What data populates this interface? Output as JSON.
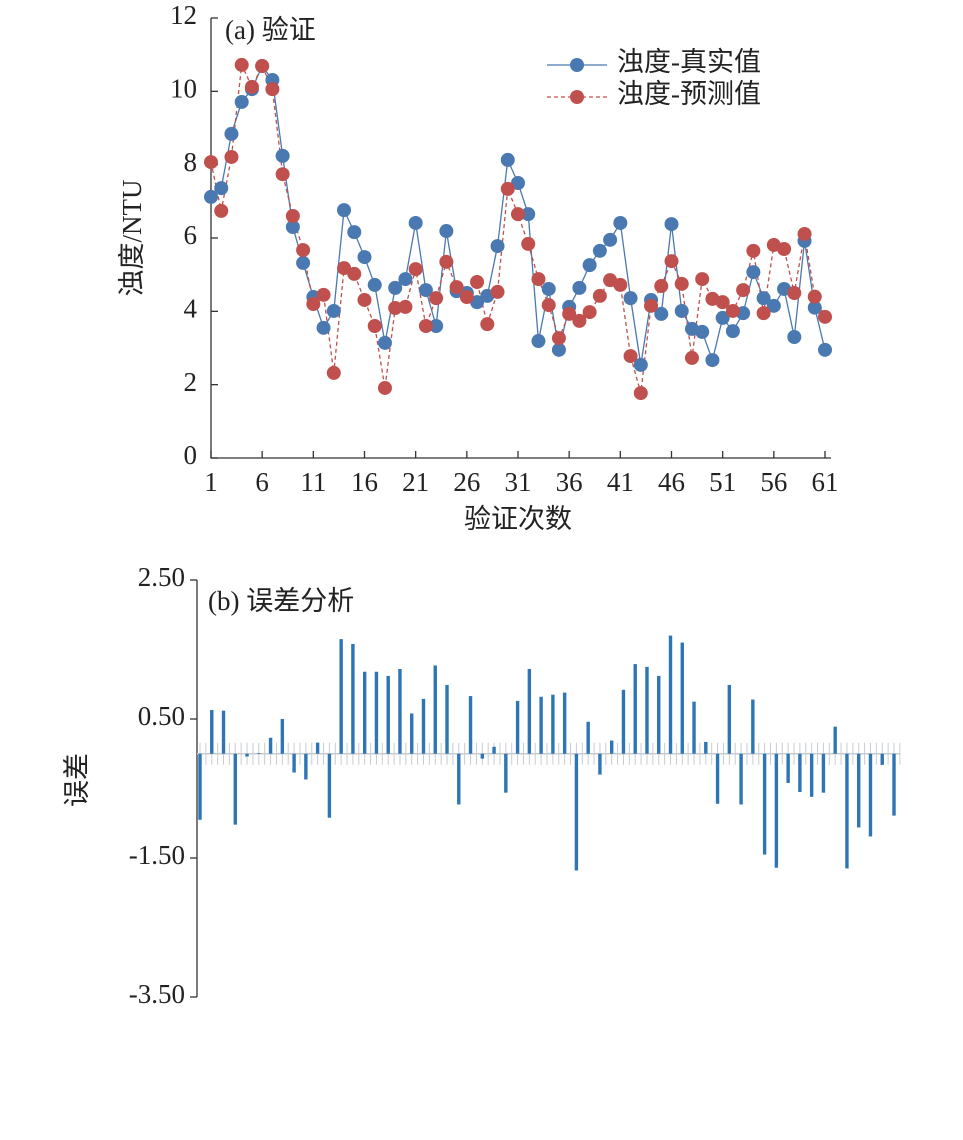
{
  "chart_data": [
    {
      "type": "line",
      "title": "(a)  验证",
      "xlabel": "验证次数",
      "ylabel": "浊度/NTU",
      "x": [
        1,
        2,
        3,
        4,
        5,
        6,
        7,
        8,
        9,
        10,
        11,
        12,
        13,
        14,
        15,
        16,
        17,
        18,
        19,
        20,
        21,
        22,
        23,
        24,
        25,
        26,
        27,
        28,
        29,
        30,
        31,
        32,
        33,
        34,
        35,
        36,
        37,
        38,
        39,
        40,
        41,
        42,
        43,
        44,
        45,
        46,
        47,
        48,
        49,
        50,
        51,
        52,
        53,
        54,
        55,
        56,
        57,
        58,
        59,
        60,
        61
      ],
      "xlim": [
        1,
        61
      ],
      "xticks": [
        1,
        6,
        11,
        16,
        21,
        26,
        31,
        36,
        41,
        46,
        51,
        56,
        61
      ],
      "ylim": [
        0,
        12
      ],
      "yticks": [
        0,
        2,
        4,
        6,
        8,
        10,
        12
      ],
      "legend": "upper right",
      "series": [
        {
          "name": "浊度-真实值",
          "color": "#4a78b0",
          "linestyle": "solid",
          "values": [
            7.12,
            7.36,
            8.84,
            9.71,
            10.06,
            10.69,
            10.31,
            8.24,
            6.3,
            5.32,
            4.39,
            3.55,
            4.01,
            6.76,
            6.16,
            5.48,
            4.72,
            3.14,
            4.64,
            4.88,
            6.41,
            4.58,
            3.6,
            6.19,
            4.55,
            4.5,
            4.25,
            4.42,
            5.78,
            8.13,
            7.5,
            6.65,
            3.19,
            4.61,
            2.95,
            4.12,
            4.64,
            5.26,
            5.65,
            5.95,
            6.41,
            4.36,
            2.54,
            4.31,
            3.93,
            6.38,
            4.01,
            3.52,
            3.44,
            2.67,
            3.82,
            3.46,
            3.95,
            5.07,
            4.36,
            4.15,
            4.61,
            3.3,
            5.92,
            4.1,
            2.95
          ]
        },
        {
          "name": "浊度-预测值",
          "color": "#c0504d",
          "linestyle": "dashed",
          "values": [
            8.07,
            6.74,
            8.21,
            10.72,
            10.12,
            10.69,
            10.06,
            7.74,
            6.6,
            5.67,
            4.2,
            4.45,
            2.32,
            5.18,
            5.02,
            4.31,
            3.6,
            1.91,
            4.09,
            4.12,
            5.15,
            3.6,
            4.36,
            5.35,
            4.66,
            4.39,
            4.8,
            3.65,
            4.53,
            7.34,
            6.65,
            5.84,
            4.88,
            4.17,
            3.27,
            3.93,
            3.74,
            3.98,
            4.42,
            4.85,
            4.72,
            2.78,
            1.77,
            4.15,
            4.69,
            5.37,
            4.75,
            2.73,
            4.88,
            4.34,
            4.25,
            4.01,
            4.58,
            5.65,
            3.95,
            5.81,
            5.7,
            4.5,
            6.11,
            4.4,
            3.85
          ]
        }
      ]
    },
    {
      "type": "bar",
      "title": "(b)  误差分析",
      "ylabel": "误差",
      "color": "#2e75b6",
      "ylim": [
        -3.5,
        2.5
      ],
      "yticks": [
        {
          "value": -3.5,
          "label": "-3.50"
        },
        {
          "value": -1.5,
          "label": "-1.50"
        },
        {
          "value": 0.5,
          "label": "0.50"
        },
        {
          "value": 2.5,
          "label": "2.50"
        }
      ],
      "values": [
        -0.95,
        0.63,
        0.62,
        -1.02,
        -0.04,
        0.01,
        0.23,
        0.5,
        -0.27,
        -0.37,
        0.16,
        -0.92,
        1.65,
        1.58,
        1.18,
        1.18,
        1.12,
        1.22,
        0.58,
        0.79,
        1.27,
        0.99,
        -0.73,
        0.83,
        -0.07,
        0.1,
        -0.56,
        0.76,
        1.22,
        0.82,
        0.85,
        0.88,
        -1.68,
        0.46,
        -0.3,
        0.19,
        0.92,
        1.29,
        1.25,
        1.12,
        1.7,
        1.6,
        0.75,
        0.17,
        -0.72,
        0.99,
        -0.73,
        0.78,
        -1.45,
        -1.64,
        -0.42,
        -0.55,
        -0.62,
        -0.56,
        0.39,
        -1.65,
        -1.06,
        -1.19,
        -0.16,
        -0.89
      ]
    }
  ]
}
